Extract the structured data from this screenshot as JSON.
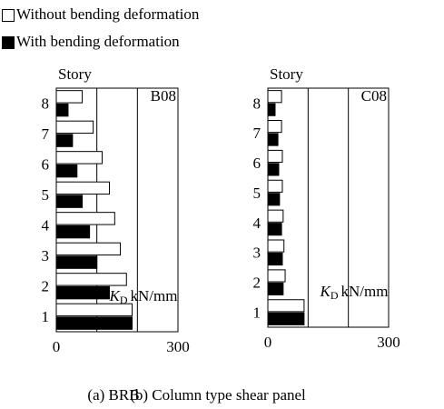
{
  "chart_data": [
    {
      "type": "bar",
      "orientation": "horizontal",
      "panel_label": "B08",
      "caption": "(a) BRB",
      "y_label": "Story",
      "x_label": {
        "symbol": "K",
        "subscript": "D",
        "unit": "kN/mm"
      },
      "categories": [
        "1",
        "2",
        "3",
        "4",
        "5",
        "6",
        "7",
        "8"
      ],
      "series": [
        {
          "name": "Without bending deformation",
          "color": "#ffffff",
          "values": [
            187,
            173,
            158,
            144,
            131,
            113,
            91,
            64
          ]
        },
        {
          "name": "With bending deformation",
          "color": "#000000",
          "values": [
            187,
            131,
            100,
            82,
            64,
            51,
            40,
            29
          ]
        }
      ],
      "xlim": [
        0,
        300
      ],
      "xticks": [
        0,
        300
      ],
      "grid_lines": [
        100,
        200
      ]
    },
    {
      "type": "bar",
      "orientation": "horizontal",
      "panel_label": "C08",
      "caption": "(b) Column type shear panel",
      "y_label": "Story",
      "x_label": {
        "symbol": "K",
        "subscript": "D",
        "unit": "kN/mm"
      },
      "categories": [
        "1",
        "2",
        "3",
        "4",
        "5",
        "6",
        "7",
        "8"
      ],
      "series": [
        {
          "color": "#ffffff",
          "values": [
            90,
            43,
            40,
            38,
            36,
            36,
            34,
            34
          ]
        },
        {
          "color": "#000000",
          "values": [
            90,
            38,
            36,
            34,
            29,
            27,
            25,
            18
          ]
        }
      ],
      "xlim": [
        0,
        300
      ],
      "xticks": [
        0,
        300
      ],
      "grid_lines": [
        100,
        200
      ]
    }
  ]
}
